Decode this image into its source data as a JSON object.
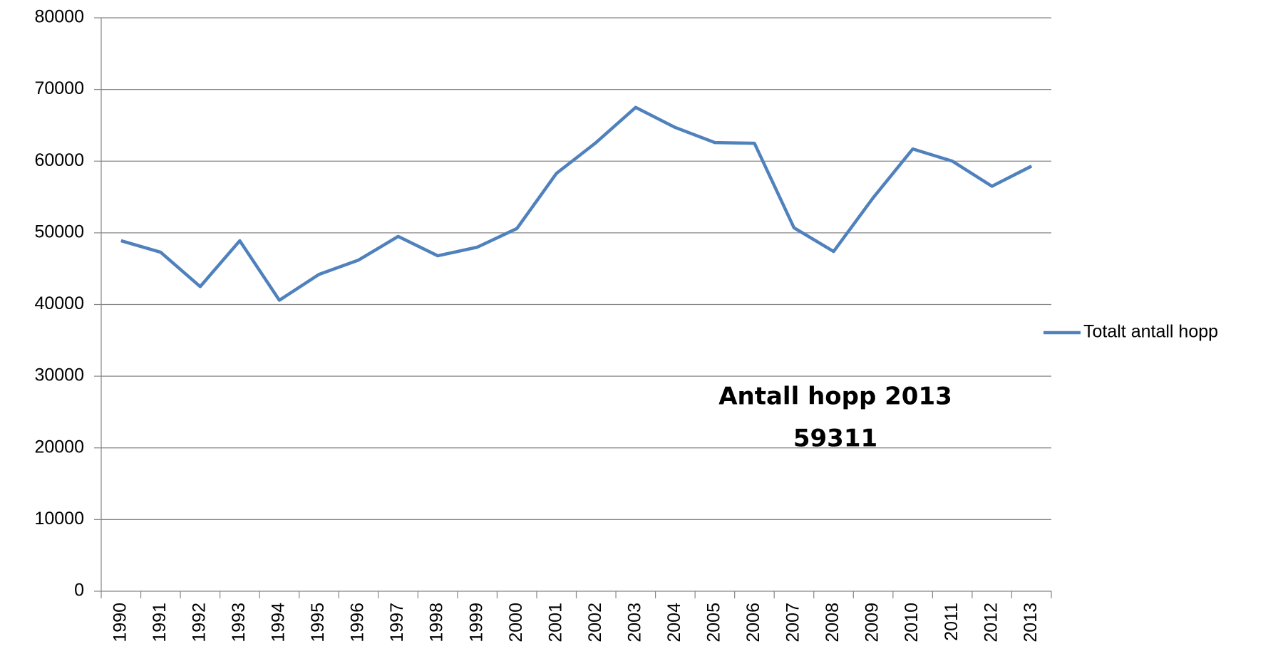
{
  "chart_data": {
    "type": "line",
    "categories": [
      "1990",
      "1991",
      "1992",
      "1993",
      "1994",
      "1995",
      "1996",
      "1997",
      "1998",
      "1999",
      "2000",
      "2001",
      "2002",
      "2003",
      "2004",
      "2005",
      "2006",
      "2007",
      "2008",
      "2009",
      "2010",
      "2011",
      "2012",
      "2013"
    ],
    "series": [
      {
        "name": "Totalt antall hopp",
        "color": "#4f81bd",
        "values": [
          48900,
          47300,
          42500,
          48900,
          40600,
          44200,
          46200,
          49500,
          46800,
          48000,
          50600,
          58300,
          62600,
          67500,
          64700,
          62600,
          62500,
          50700,
          47400,
          54900,
          61700,
          60000,
          56500,
          59311
        ]
      }
    ],
    "ylim": [
      0,
      80000
    ],
    "yticks": [
      0,
      10000,
      20000,
      30000,
      40000,
      50000,
      60000,
      70000,
      80000
    ],
    "grid": true,
    "legend": "right",
    "annotation": [
      "Antall hopp 2013",
      "59311"
    ]
  }
}
